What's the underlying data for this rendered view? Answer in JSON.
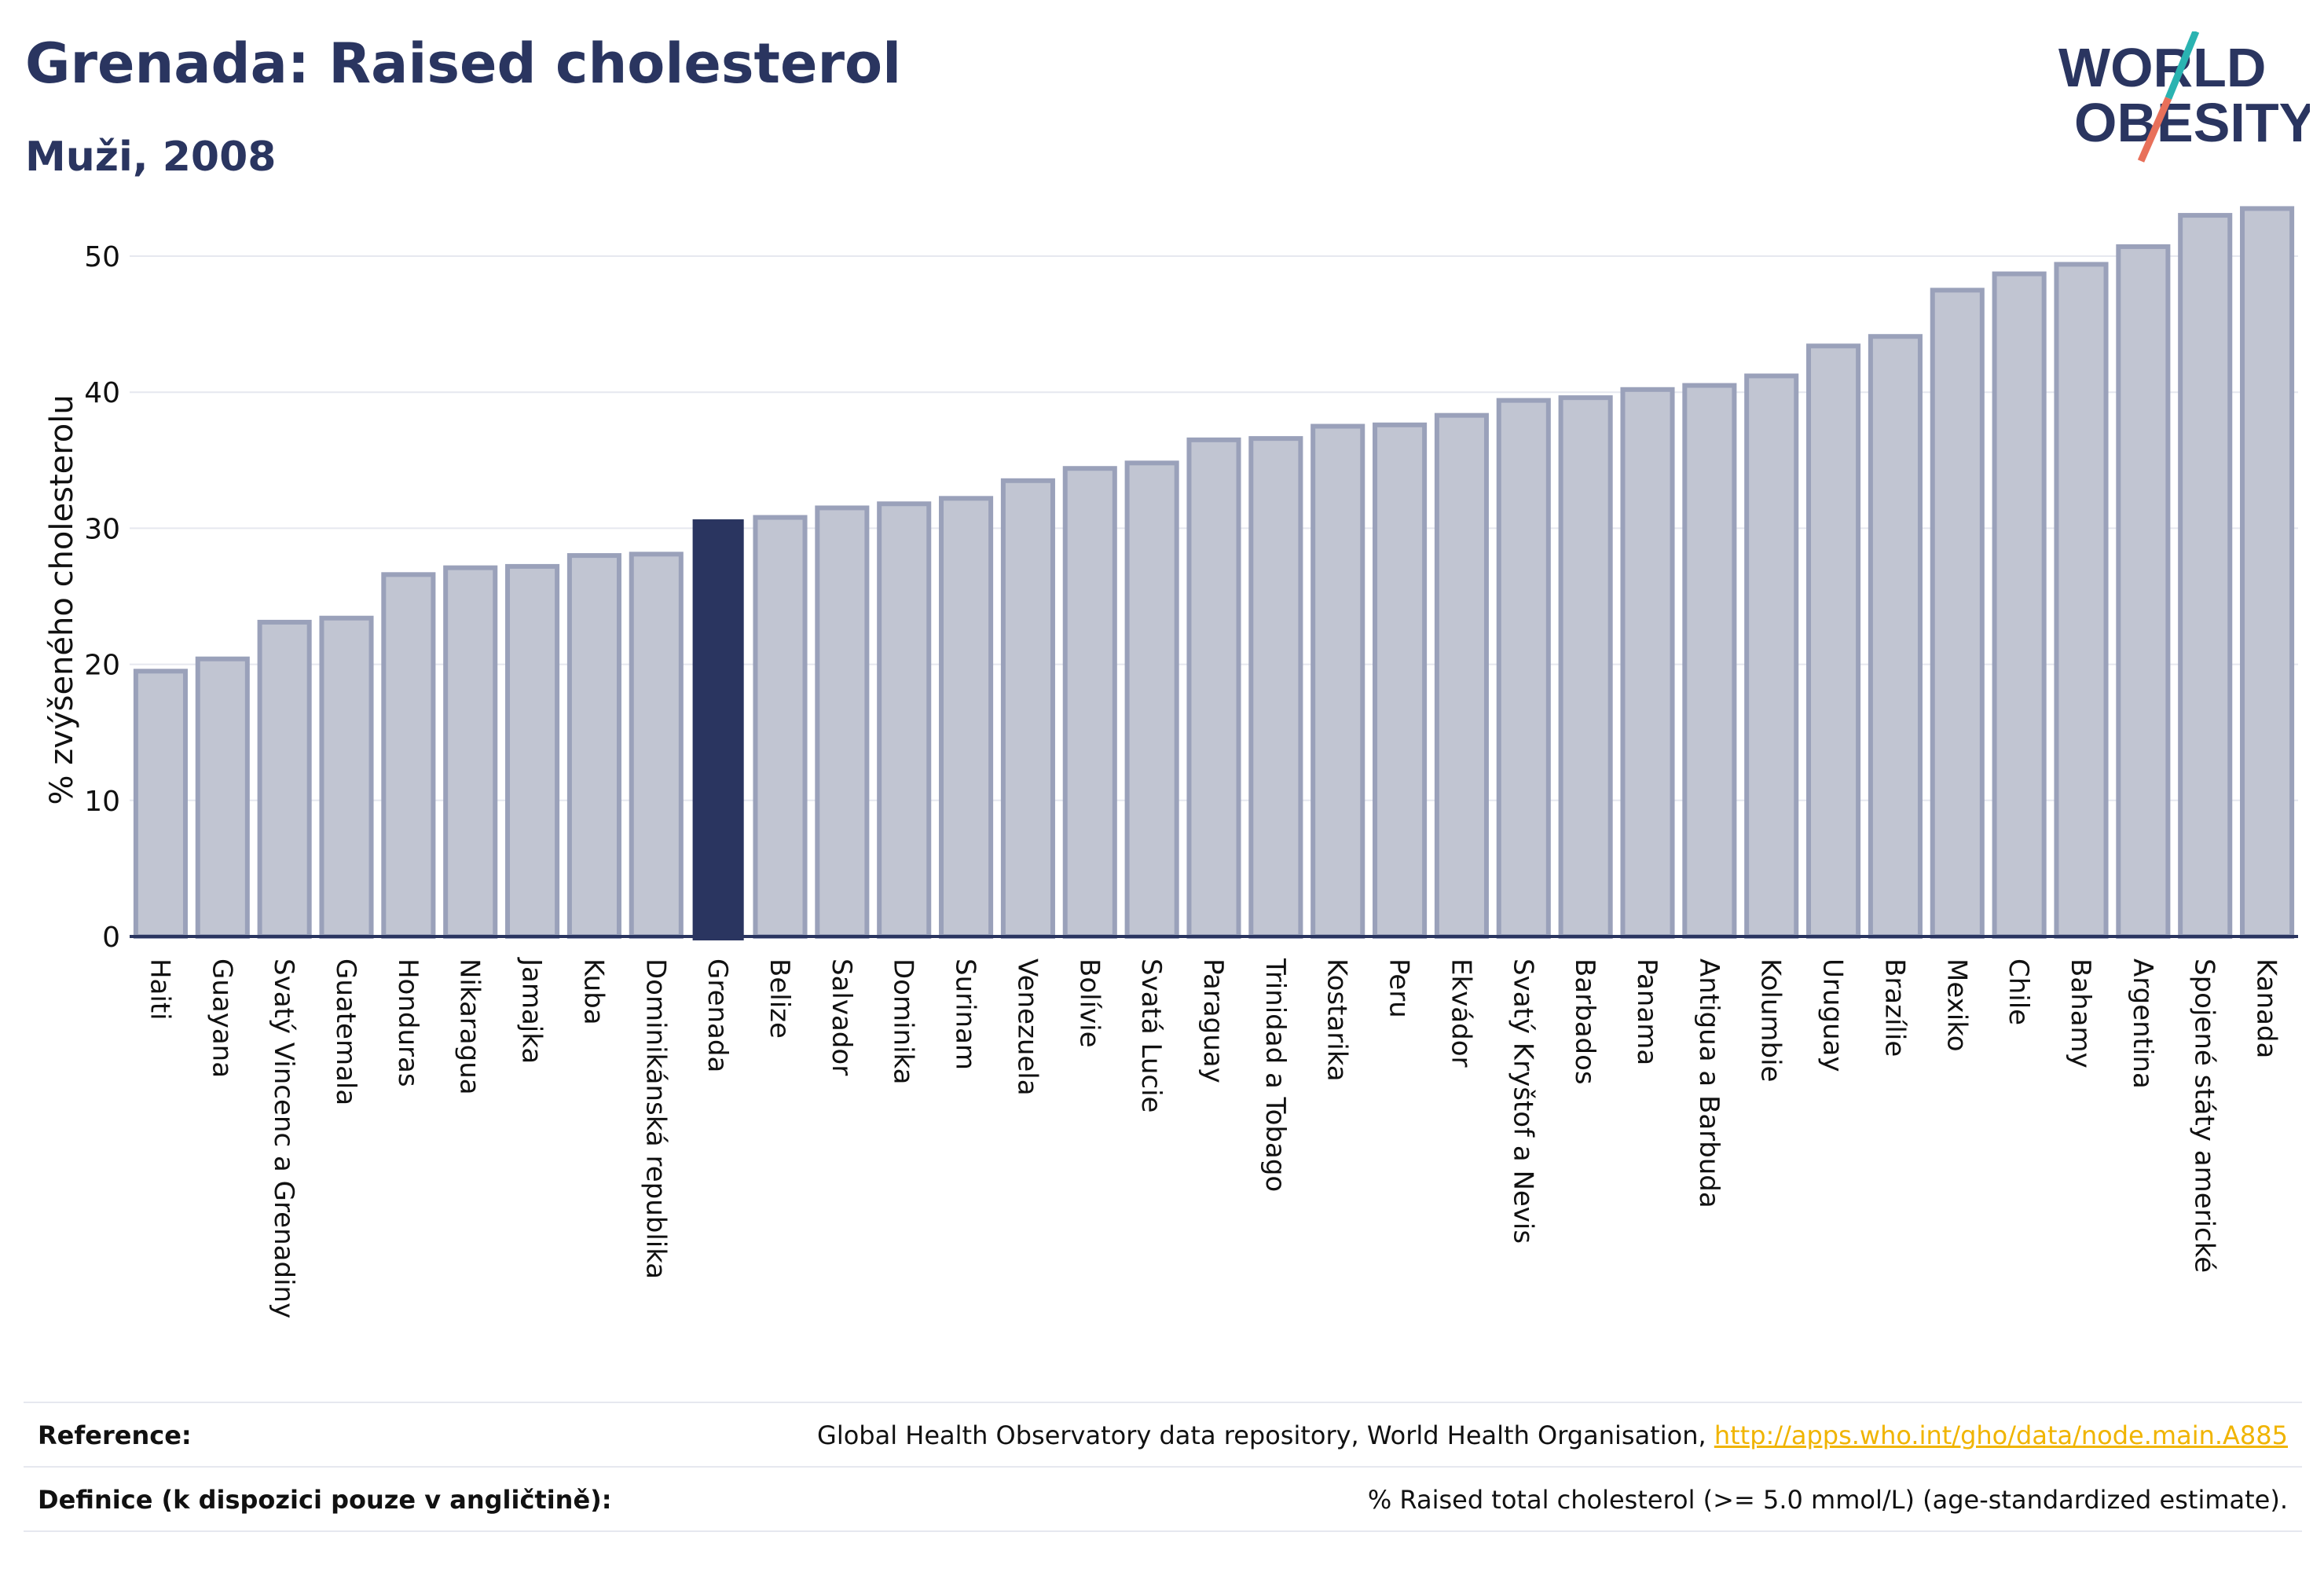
{
  "header": {
    "title": "Grenada: Raised cholesterol",
    "subtitle": "Muži, 2008"
  },
  "logo": {
    "line1": "WORLD",
    "line2": "OBESITY",
    "colors": {
      "text": "#2a3560",
      "slash_top": "#2ab3b1",
      "slash_bottom": "#e8705a"
    }
  },
  "colors": {
    "bar_fill": "#c1c5d2",
    "bar_stroke": "#9aa1ba",
    "highlight": "#2a3560",
    "axis": "#2a3560",
    "grid": "#e6e8ef"
  },
  "chart_data": {
    "type": "bar",
    "ylabel": "% zvýšeného cholesterolu",
    "ylim": [
      0,
      55
    ],
    "yticks": [
      0,
      10,
      20,
      30,
      40,
      50
    ],
    "grid": true,
    "highlight": "Grenada",
    "categories": [
      "Haiti",
      "Guayana",
      "Svatý Vincenc a Grenadiny",
      "Guatemala",
      "Honduras",
      "Nikaragua",
      "Jamajka",
      "Kuba",
      "Dominikánská republika",
      "Grenada",
      "Belize",
      "Salvador",
      "Dominika",
      "Surinam",
      "Venezuela",
      "Bolívie",
      "Svatá Lucie",
      "Paraguay",
      "Trinidad a Tobago",
      "Kostarika",
      "Peru",
      "Ekvádor",
      "Svatý Kryštof a Nevis",
      "Barbados",
      "Panama",
      "Antigua a Barbuda",
      "Kolumbie",
      "Uruguay",
      "Brazílie",
      "Mexiko",
      "Chile",
      "Bahamy",
      "Argentina",
      "Spojené státy americké",
      "Kanada"
    ],
    "values": [
      19.5,
      20.4,
      23.1,
      23.4,
      26.6,
      27.1,
      27.2,
      28.0,
      28.1,
      30.6,
      30.8,
      31.5,
      31.8,
      32.2,
      33.5,
      34.4,
      34.8,
      36.5,
      36.6,
      37.5,
      37.6,
      38.3,
      39.4,
      39.6,
      40.2,
      40.5,
      41.2,
      43.4,
      44.1,
      47.5,
      48.7,
      49.4,
      50.7,
      53.0,
      53.5
    ]
  },
  "footer": {
    "reference_label": "Reference:",
    "reference_text": "Global Health Observatory data repository, World Health Organisation, ",
    "reference_link": "http://apps.who.int/gho/data/node.main.A885",
    "definition_label": "Definice (k dispozici pouze v angličtině):",
    "definition_text": "% Raised total cholesterol (>= 5.0 mmol/L) (age-standardized estimate)."
  }
}
